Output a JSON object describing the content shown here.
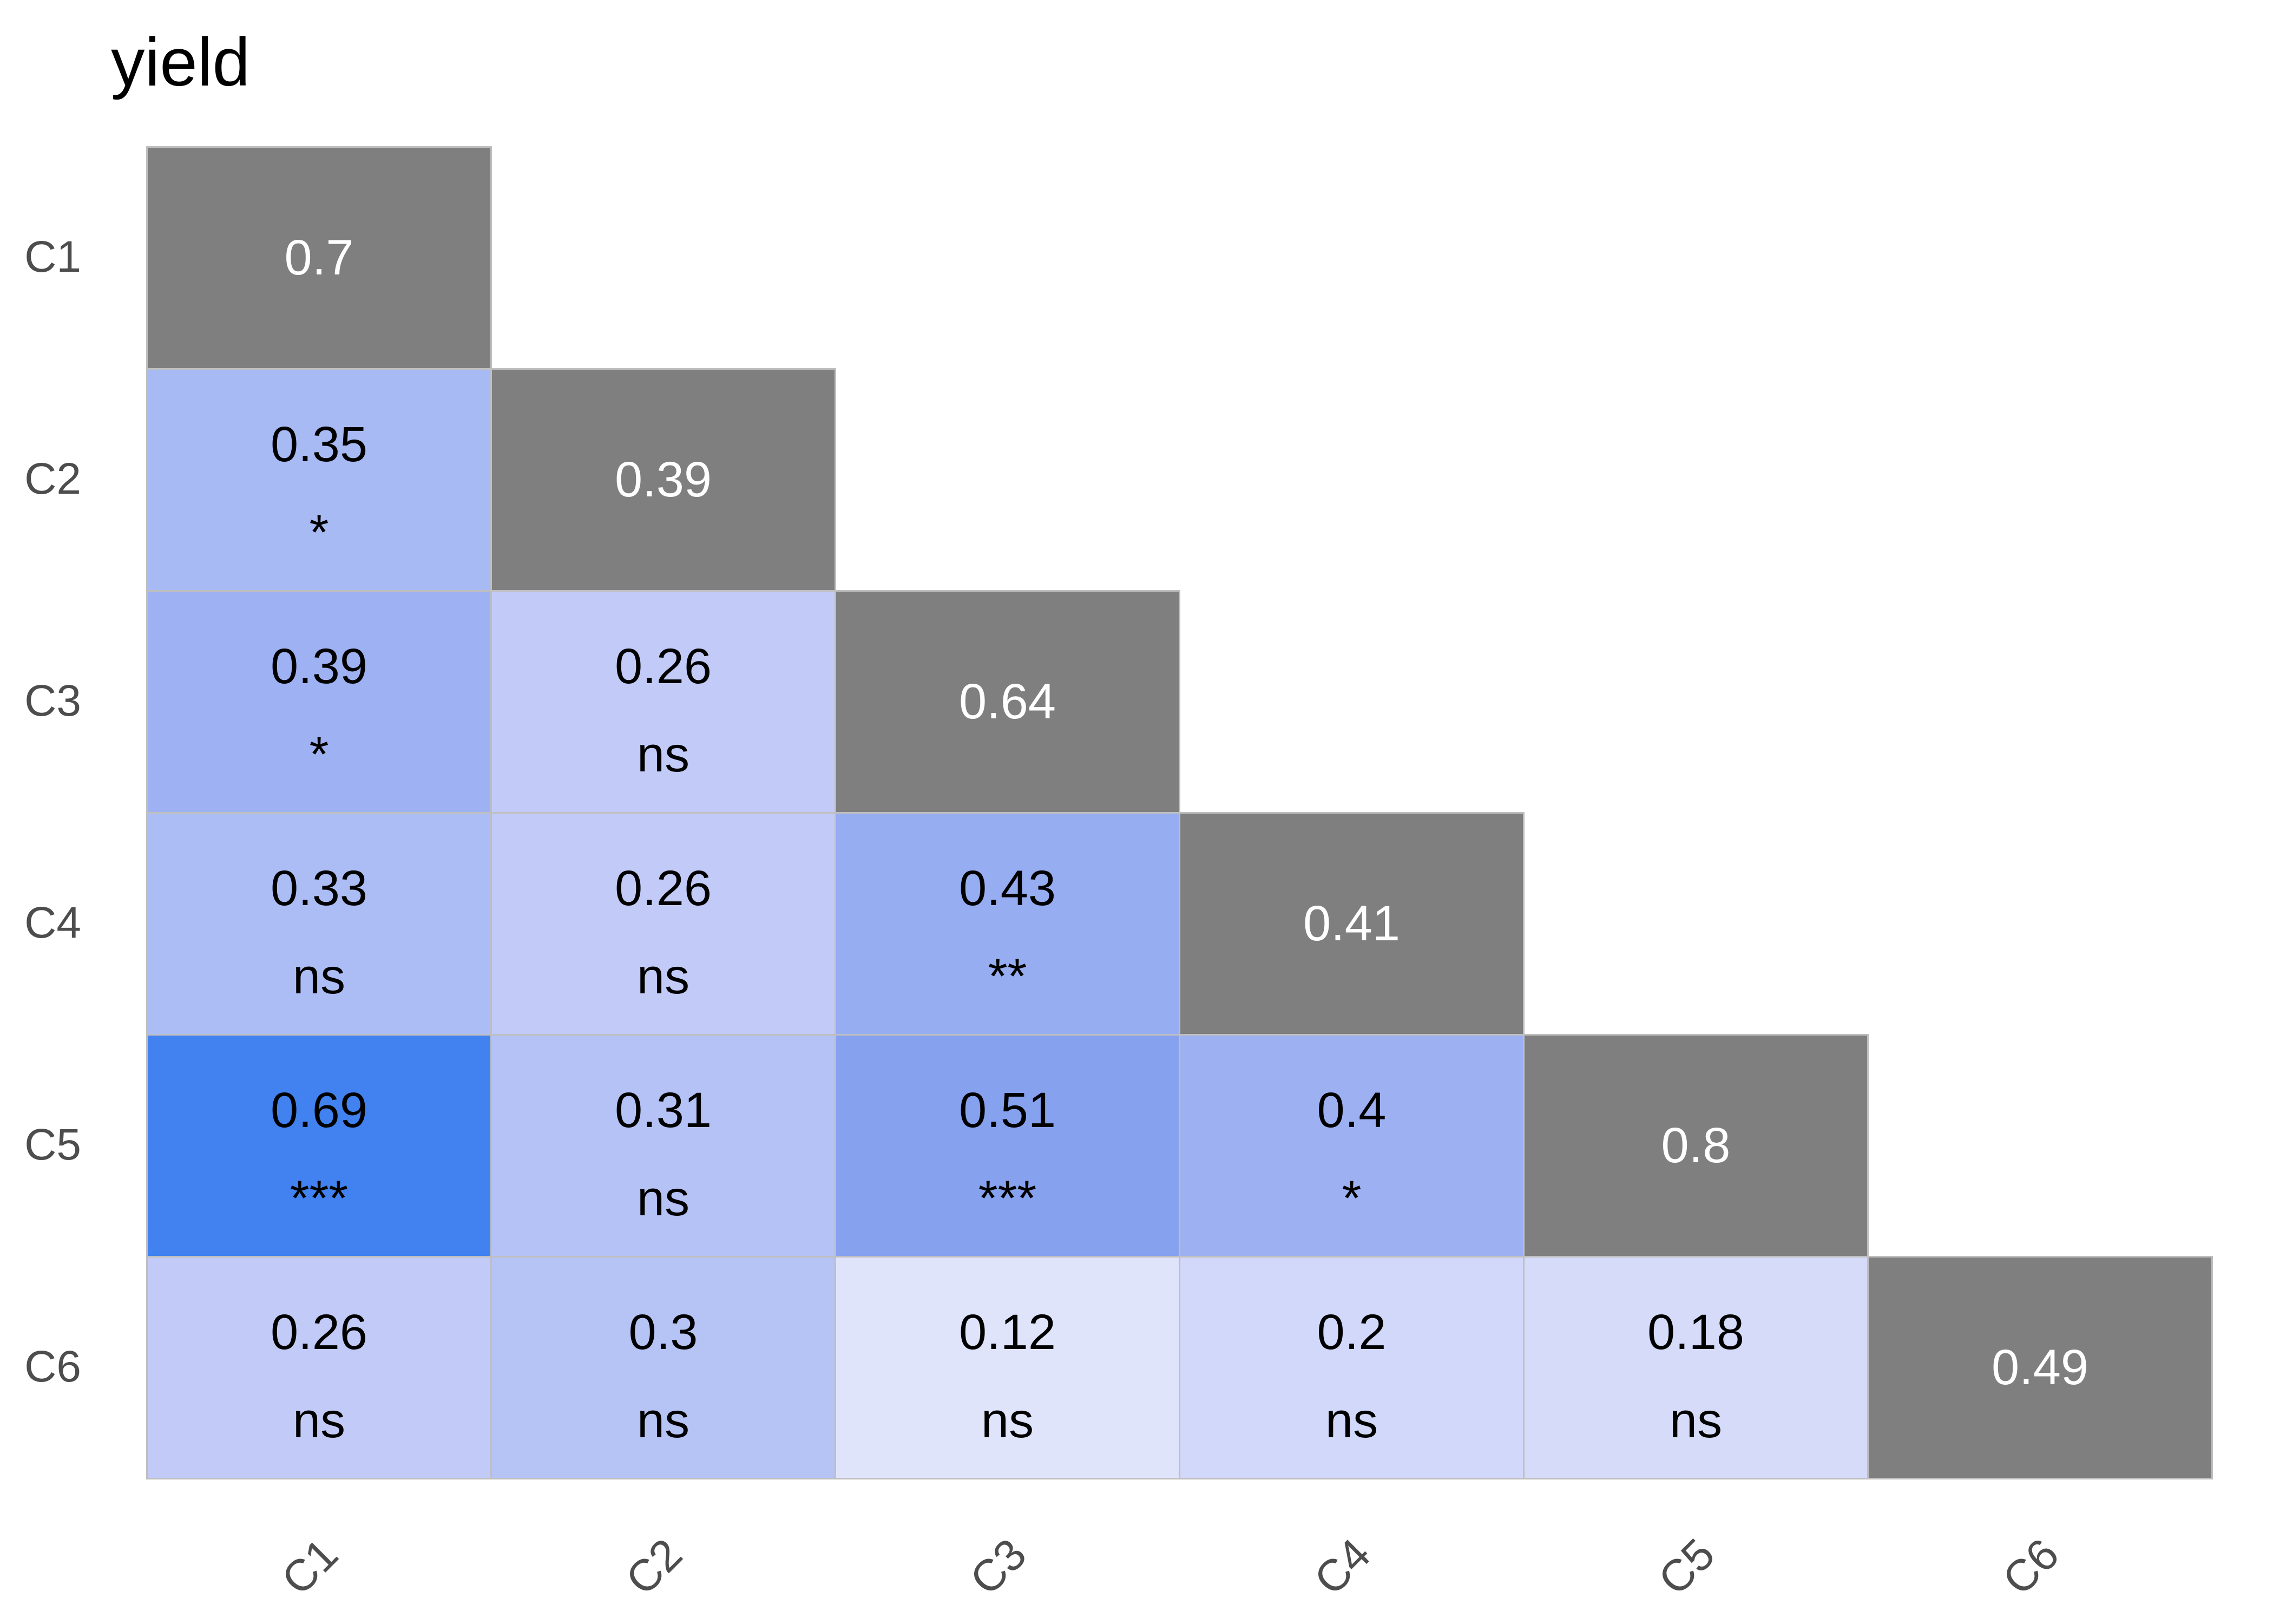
{
  "title": "yield",
  "colors": {
    "background": "#ffffff",
    "title_text": "#000000",
    "axis_label_text": "#4d4d4d",
    "grid_border": "#bfbfbf",
    "diagonal_fill": "#7f7f7f",
    "diagonal_text": "#ffffff",
    "cell_text": "#000000",
    "scale_low": "#e0e4fb",
    "scale_high": "#4182f0"
  },
  "chart_data": {
    "type": "heatmap",
    "title": "yield",
    "layout": "lower-triangle correlation matrix, diagonal self-correlation cells in gray, significance codes below coefficients, no legend, white background",
    "rows": [
      "C1",
      "C2",
      "C3",
      "C4",
      "C5",
      "C6"
    ],
    "columns": [
      "C1",
      "C2",
      "C3",
      "C4",
      "C5",
      "C6"
    ],
    "x_axis_labels": [
      "C1",
      "C2",
      "C3",
      "C4",
      "C5",
      "C6"
    ],
    "y_axis_labels": [
      "C1",
      "C2",
      "C3",
      "C4",
      "C5",
      "C6"
    ],
    "significance_codes": [
      "*",
      "**",
      "***",
      "ns"
    ],
    "cells": [
      {
        "row": "C1",
        "col": "C1",
        "value": "0.7",
        "sig": "",
        "diagonal": true,
        "fill": "#7f7f7f"
      },
      {
        "row": "C2",
        "col": "C1",
        "value": "0.35",
        "sig": "*",
        "diagonal": false,
        "fill": "#a8baf4"
      },
      {
        "row": "C2",
        "col": "C2",
        "value": "0.39",
        "sig": "",
        "diagonal": true,
        "fill": "#7f7f7f"
      },
      {
        "row": "C3",
        "col": "C1",
        "value": "0.39",
        "sig": "*",
        "diagonal": false,
        "fill": "#9eb1f2"
      },
      {
        "row": "C3",
        "col": "C2",
        "value": "0.26",
        "sig": "ns",
        "diagonal": false,
        "fill": "#c2cbf7"
      },
      {
        "row": "C3",
        "col": "C3",
        "value": "0.64",
        "sig": "",
        "diagonal": true,
        "fill": "#7f7f7f"
      },
      {
        "row": "C4",
        "col": "C1",
        "value": "0.33",
        "sig": "ns",
        "diagonal": false,
        "fill": "#abbdf4"
      },
      {
        "row": "C4",
        "col": "C2",
        "value": "0.26",
        "sig": "ns",
        "diagonal": false,
        "fill": "#c2cbf7"
      },
      {
        "row": "C4",
        "col": "C3",
        "value": "0.43",
        "sig": "**",
        "diagonal": false,
        "fill": "#97adf1"
      },
      {
        "row": "C4",
        "col": "C4",
        "value": "0.41",
        "sig": "",
        "diagonal": true,
        "fill": "#7f7f7f"
      },
      {
        "row": "C5",
        "col": "C1",
        "value": "0.69",
        "sig": "***",
        "diagonal": false,
        "fill": "#4182f0"
      },
      {
        "row": "C5",
        "col": "C2",
        "value": "0.31",
        "sig": "ns",
        "diagonal": false,
        "fill": "#b4c2f5"
      },
      {
        "row": "C5",
        "col": "C3",
        "value": "0.51",
        "sig": "***",
        "diagonal": false,
        "fill": "#86a2ef"
      },
      {
        "row": "C5",
        "col": "C4",
        "value": "0.4",
        "sig": "*",
        "diagonal": false,
        "fill": "#9db1f2"
      },
      {
        "row": "C5",
        "col": "C5",
        "value": "0.8",
        "sig": "",
        "diagonal": true,
        "fill": "#7f7f7f"
      },
      {
        "row": "C6",
        "col": "C1",
        "value": "0.26",
        "sig": "ns",
        "diagonal": false,
        "fill": "#c2cbf7"
      },
      {
        "row": "C6",
        "col": "C2",
        "value": "0.3",
        "sig": "ns",
        "diagonal": false,
        "fill": "#b6c3f5"
      },
      {
        "row": "C6",
        "col": "C3",
        "value": "0.12",
        "sig": "ns",
        "diagonal": false,
        "fill": "#e0e4fb"
      },
      {
        "row": "C6",
        "col": "C4",
        "value": "0.2",
        "sig": "ns",
        "diagonal": false,
        "fill": "#d1d8f9"
      },
      {
        "row": "C6",
        "col": "C5",
        "value": "0.18",
        "sig": "ns",
        "diagonal": false,
        "fill": "#d5dbf9"
      },
      {
        "row": "C6",
        "col": "C6",
        "value": "0.49",
        "sig": "",
        "diagonal": true,
        "fill": "#7f7f7f"
      }
    ]
  }
}
